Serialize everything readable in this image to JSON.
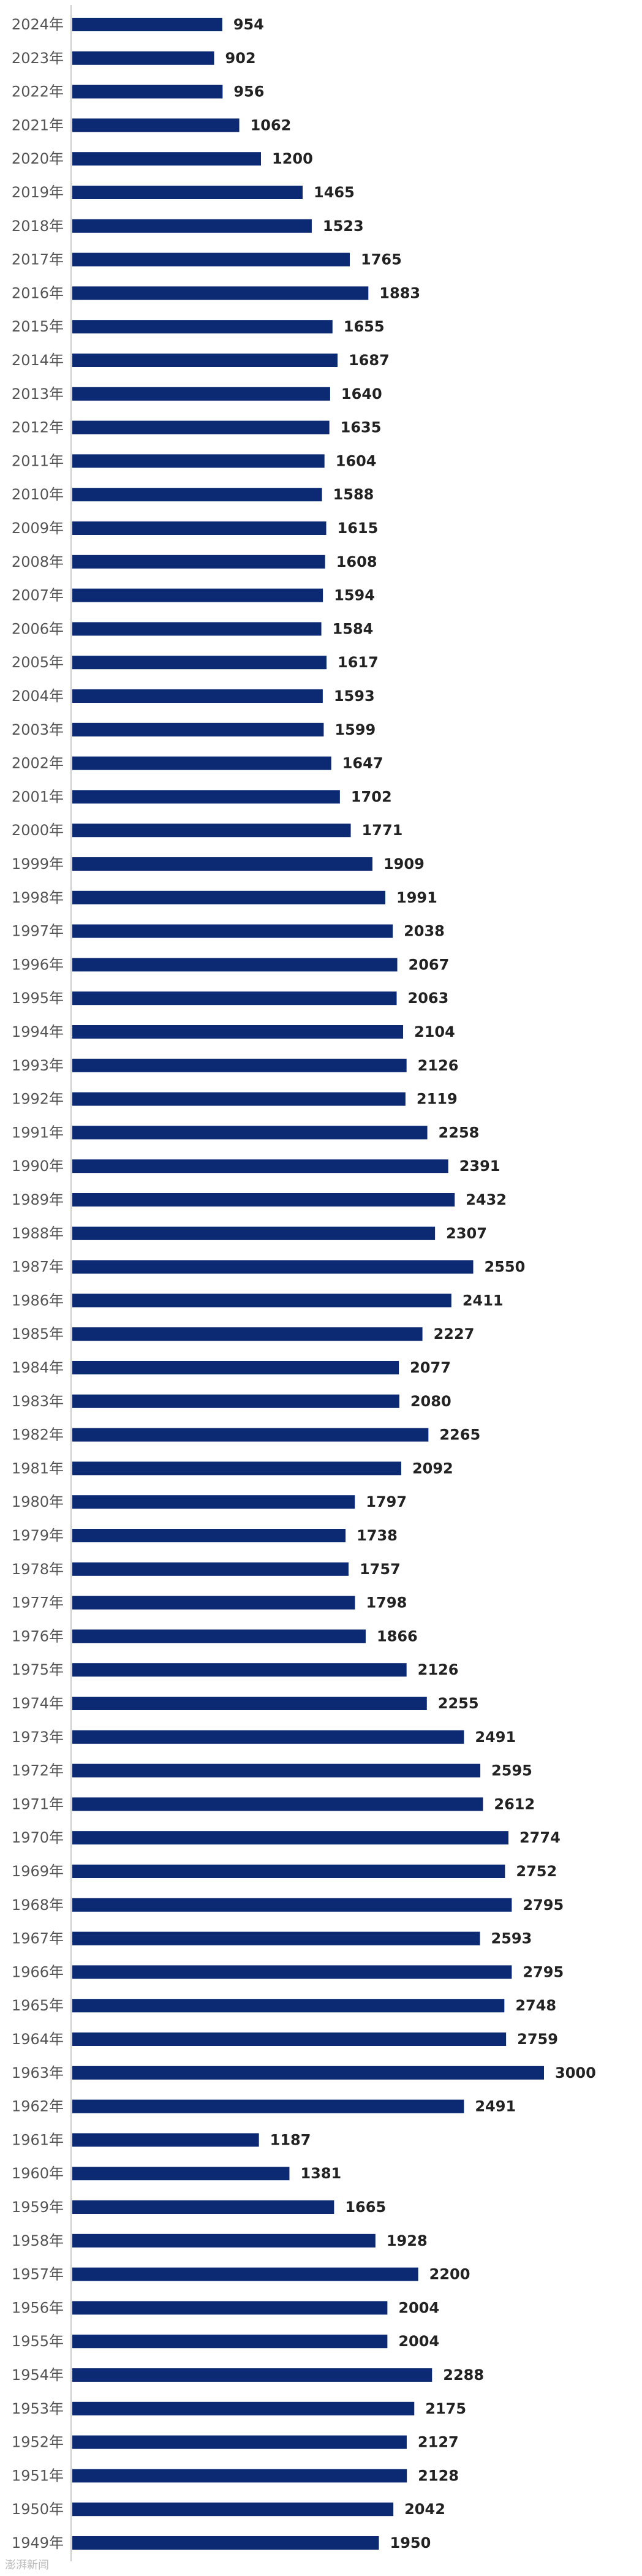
{
  "chart_data": {
    "type": "bar",
    "orientation": "horizontal",
    "bar_color": "#0c2a73",
    "categories": [
      "2024年",
      "2023年",
      "2022年",
      "2021年",
      "2020年",
      "2019年",
      "2018年",
      "2017年",
      "2016年",
      "2015年",
      "2014年",
      "2013年",
      "2012年",
      "2011年",
      "2010年",
      "2009年",
      "2008年",
      "2007年",
      "2006年",
      "2005年",
      "2004年",
      "2003年",
      "2002年",
      "2001年",
      "2000年",
      "1999年",
      "1998年",
      "1997年",
      "1996年",
      "1995年",
      "1994年",
      "1993年",
      "1992年",
      "1991年",
      "1990年",
      "1989年",
      "1988年",
      "1987年",
      "1986年",
      "1985年",
      "1984年",
      "1983年",
      "1982年",
      "1981年",
      "1980年",
      "1979年",
      "1978年",
      "1977年",
      "1976年",
      "1975年",
      "1974年",
      "1973年",
      "1972年",
      "1971年",
      "1970年",
      "1969年",
      "1968年",
      "1967年",
      "1966年",
      "1965年",
      "1964年",
      "1963年",
      "1962年",
      "1961年",
      "1960年",
      "1959年",
      "1958年",
      "1957年",
      "1956年",
      "1955年",
      "1954年",
      "1953年",
      "1952年",
      "1951年",
      "1950年",
      "1949年"
    ],
    "values": [
      954,
      902,
      956,
      1062,
      1200,
      1465,
      1523,
      1765,
      1883,
      1655,
      1687,
      1640,
      1635,
      1604,
      1588,
      1615,
      1608,
      1594,
      1584,
      1617,
      1593,
      1599,
      1647,
      1702,
      1771,
      1909,
      1991,
      2038,
      2067,
      2063,
      2104,
      2126,
      2119,
      2258,
      2391,
      2432,
      2307,
      2550,
      2411,
      2227,
      2077,
      2080,
      2265,
      2092,
      1797,
      1738,
      1757,
      1798,
      1866,
      2126,
      2255,
      2491,
      2595,
      2612,
      2774,
      2752,
      2795,
      2593,
      2795,
      2748,
      2759,
      3000,
      2491,
      1187,
      1381,
      1665,
      1928,
      2200,
      2004,
      2004,
      2288,
      2175,
      2127,
      2128,
      2042,
      1950
    ],
    "xlim": [
      0,
      3000
    ]
  },
  "watermark": "澎湃新闻"
}
